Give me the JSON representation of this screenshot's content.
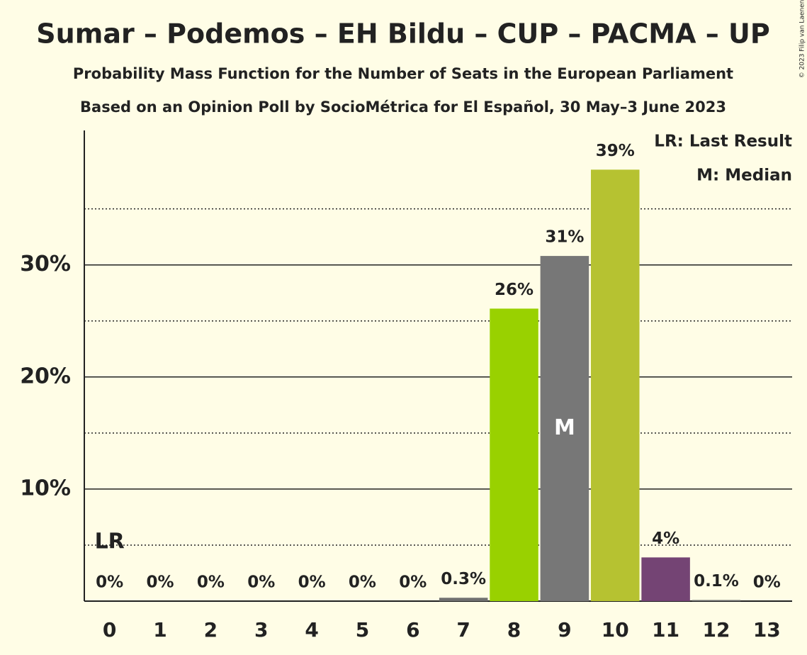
{
  "chart_data": {
    "type": "bar",
    "title": "Sumar – Podemos – EH Bildu – CUP – PACMA – UP",
    "subtitle": "Probability Mass Function for the Number of Seats in the European Parliament",
    "subtitle2": "Based on an Opinion Poll by SocioMétrica for El Español, 30 May–3 June 2023",
    "copyright": "© 2023 Filip van Laenen",
    "categories": [
      "0",
      "1",
      "2",
      "3",
      "4",
      "5",
      "6",
      "7",
      "8",
      "9",
      "10",
      "11",
      "12",
      "13"
    ],
    "values": [
      0,
      0,
      0,
      0,
      0,
      0,
      0,
      0.3,
      26.1,
      30.8,
      38.5,
      3.9,
      0.1,
      0
    ],
    "value_labels": [
      "0%",
      "0%",
      "0%",
      "0%",
      "0%",
      "0%",
      "0%",
      "0.3%",
      "26%",
      "31%",
      "39%",
      "4%",
      "0.1%",
      "0%"
    ],
    "colors": [
      "#707070",
      "#707070",
      "#707070",
      "#707070",
      "#707070",
      "#707070",
      "#707070",
      "#707070",
      "#99d100",
      "#777777",
      "#b6c231",
      "#744474",
      "#707070",
      "#707070"
    ],
    "ylim": [
      0,
      42
    ],
    "yticks": [
      {
        "value": 10,
        "label": "10%"
      },
      {
        "value": 20,
        "label": "20%"
      },
      {
        "value": 30,
        "label": "30%"
      }
    ],
    "minor_yticks": [
      5,
      15,
      25,
      35
    ],
    "annotations": [
      {
        "text": "LR",
        "x": 0
      },
      {
        "text": "M",
        "x": 9
      }
    ],
    "legend": [
      "LR: Last Result",
      "M: Median"
    ]
  }
}
